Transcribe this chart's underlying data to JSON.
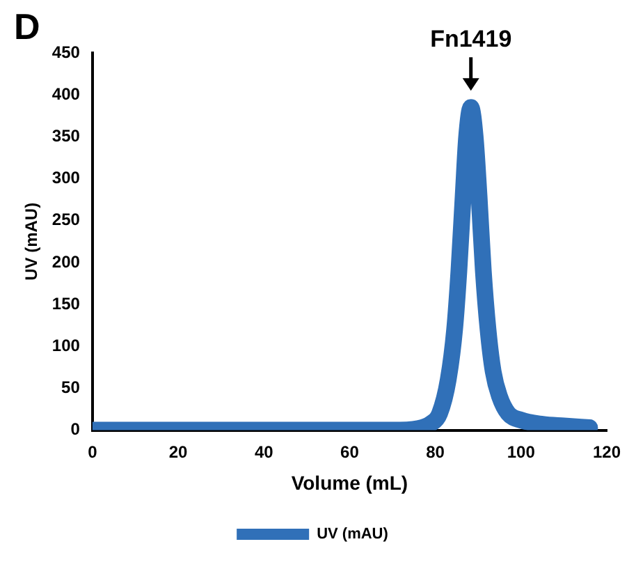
{
  "chart_data": {
    "type": "line",
    "xlabel": "Volume (mL)",
    "ylabel": "UV (mAU)",
    "annotations": [
      "D",
      {
        "text": "Fn1419",
        "x": 88.3,
        "y": 385
      }
    ],
    "xlim": [
      0,
      120
    ],
    "xticks": [
      0,
      20,
      40,
      60,
      80,
      100,
      120
    ],
    "ylim": [
      0,
      450
    ],
    "yticks": [
      0,
      50,
      100,
      150,
      200,
      250,
      300,
      350,
      400,
      450
    ],
    "grid": false,
    "legend": "bottom",
    "marker": "none",
    "line_style": "solid",
    "series": [
      {
        "name": "UV (mAU)",
        "color": "#3070b8",
        "x": [
          0,
          20,
          40,
          60,
          70,
          76,
          79,
          81,
          83,
          84.5,
          85.5,
          86.5,
          87.3,
          88.3,
          89.3,
          90.2,
          91.2,
          92.3,
          93.5,
          95,
          97,
          100,
          105,
          110,
          116
        ],
        "values": [
          0,
          0,
          0,
          0,
          0,
          2,
          8,
          20,
          60,
          120,
          190,
          280,
          350,
          385,
          350,
          280,
          190,
          120,
          70,
          40,
          20,
          12,
          7,
          5,
          3
        ]
      }
    ]
  }
}
